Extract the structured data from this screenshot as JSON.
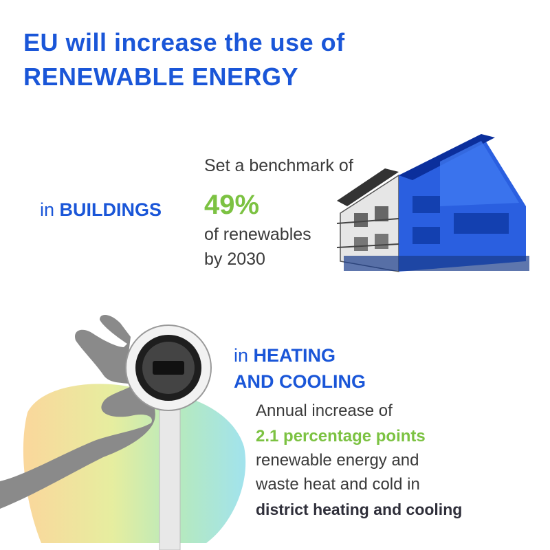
{
  "header": {
    "title_line1": "EU will increase the use of",
    "title_line2": "RENEWABLE ENERGY"
  },
  "sections": [
    {
      "prefix": "in",
      "label": "BUILDINGS",
      "lines": [
        "Set a benchmark of",
        "49%",
        "of renewables",
        "by 2030"
      ]
    },
    {
      "prefix": "in",
      "label_line1": "HEATING",
      "label_line2": "AND COOLING",
      "lines": [
        "Annual increase of",
        "2.1 percentage points",
        "renewable energy and",
        "waste heat and cold in",
        "district heating and cooling"
      ]
    }
  ]
}
